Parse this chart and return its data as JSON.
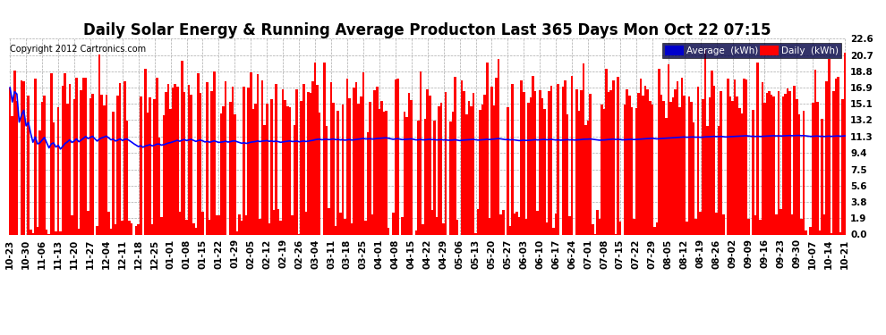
{
  "title": "Daily Solar Energy & Running Average Producton Last 365 Days Mon Oct 22 07:15",
  "copyright": "Copyright 2012 Cartronics.com",
  "ylabel_right_ticks": [
    0.0,
    1.9,
    3.8,
    5.6,
    7.5,
    9.4,
    11.3,
    13.2,
    15.1,
    16.9,
    18.8,
    20.7,
    22.6
  ],
  "ymax": 22.6,
  "ymin": 0.0,
  "bar_color": "#ff0000",
  "line_color": "#0000ff",
  "bg_color": "#ffffff",
  "grid_color": "#aaaaaa",
  "legend_avg_bg": "#0000cc",
  "legend_daily_bg": "#ff0000",
  "legend_text_color": "#ffffff",
  "title_fontsize": 12,
  "copyright_fontsize": 7,
  "tick_label_fontsize": 7.5,
  "avg_line_value": 11.8,
  "x_tick_interval": 7,
  "n_days": 365
}
